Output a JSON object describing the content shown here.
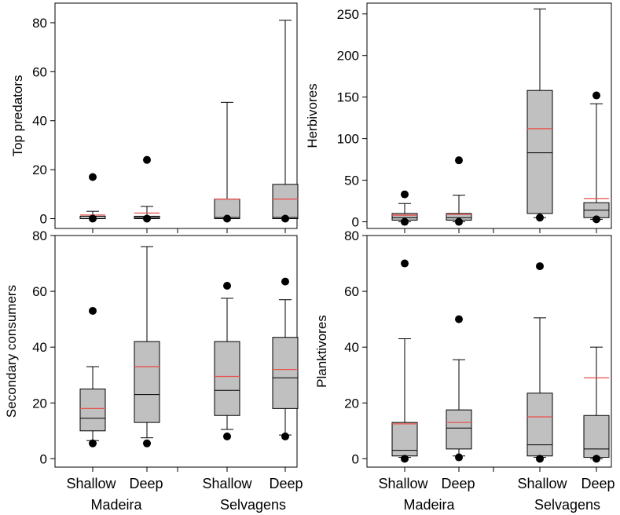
{
  "chart_data": [
    {
      "type": "box",
      "ylabel": "Top predators",
      "ylim": [
        -4,
        88
      ],
      "yticks": [
        0,
        20,
        40,
        60,
        80
      ],
      "boxes": [
        {
          "group": "Madeira",
          "depth": "Shallow",
          "whisker_low": 0,
          "q1": 0,
          "median": 0,
          "q3": 1,
          "whisker_high": 3,
          "mean": 1.5,
          "outliers": [
            0,
            17
          ]
        },
        {
          "group": "Madeira",
          "depth": "Deep",
          "whisker_low": 0,
          "q1": 0,
          "median": 0.5,
          "q3": 1,
          "whisker_high": 5,
          "mean": 2.3,
          "outliers": [
            0,
            24
          ]
        },
        {
          "group": "Selvagens",
          "depth": "Shallow",
          "whisker_low": 0,
          "q1": 0,
          "median": 0.5,
          "q3": 8,
          "whisker_high": 47.5,
          "mean": 8,
          "outliers": [
            0
          ]
        },
        {
          "group": "Selvagens",
          "depth": "Deep",
          "whisker_low": 0,
          "q1": 0,
          "median": 0.5,
          "q3": 14,
          "whisker_high": 81,
          "mean": 8,
          "outliers": [
            0
          ]
        }
      ]
    },
    {
      "type": "box",
      "ylabel": "Herbivores",
      "ylim": [
        -8,
        263
      ],
      "yticks": [
        0,
        50,
        100,
        150,
        200,
        250
      ],
      "boxes": [
        {
          "group": "Madeira",
          "depth": "Shallow",
          "whisker_low": 0,
          "q1": 2,
          "median": 5,
          "q3": 10,
          "whisker_high": 22,
          "mean": 8,
          "outliers": [
            0,
            33
          ]
        },
        {
          "group": "Madeira",
          "depth": "Deep",
          "whisker_low": 0,
          "q1": 2,
          "median": 5,
          "q3": 10,
          "whisker_high": 32,
          "mean": 9,
          "outliers": [
            0,
            74
          ]
        },
        {
          "group": "Selvagens",
          "depth": "Shallow",
          "whisker_low": 5,
          "q1": 10,
          "median": 83,
          "q3": 158,
          "whisker_high": 256,
          "mean": 112,
          "outliers": [
            5
          ]
        },
        {
          "group": "Selvagens",
          "depth": "Deep",
          "whisker_low": 3,
          "q1": 5,
          "median": 14,
          "q3": 23,
          "whisker_high": 142,
          "mean": 28,
          "outliers": [
            3,
            152
          ]
        }
      ]
    },
    {
      "type": "box",
      "ylabel": "Secondary consumers",
      "ylim": [
        -3,
        80
      ],
      "yticks": [
        0,
        20,
        40,
        60,
        80
      ],
      "boxes": [
        {
          "group": "Madeira",
          "depth": "Shallow",
          "whisker_low": 6.5,
          "q1": 10,
          "median": 14.5,
          "q3": 25,
          "whisker_high": 33,
          "mean": 18,
          "outliers": [
            5.5,
            53
          ]
        },
        {
          "group": "Madeira",
          "depth": "Deep",
          "whisker_low": 7.5,
          "q1": 13,
          "median": 23,
          "q3": 42,
          "whisker_high": 76,
          "mean": 33,
          "outliers": [
            5.5
          ]
        },
        {
          "group": "Selvagens",
          "depth": "Shallow",
          "whisker_low": 10.5,
          "q1": 15.5,
          "median": 24.5,
          "q3": 42,
          "whisker_high": 57.5,
          "mean": 29.5,
          "outliers": [
            8,
            62
          ]
        },
        {
          "group": "Selvagens",
          "depth": "Deep",
          "whisker_low": 8.5,
          "q1": 18,
          "median": 29,
          "q3": 43.5,
          "whisker_high": 57,
          "mean": 32,
          "outliers": [
            8,
            63.5
          ]
        }
      ]
    },
    {
      "type": "box",
      "ylabel": "Planktivores",
      "ylim": [
        -3,
        80
      ],
      "yticks": [
        0,
        20,
        40,
        60,
        80
      ],
      "boxes": [
        {
          "group": "Madeira",
          "depth": "Shallow",
          "whisker_low": 0.5,
          "q1": 1,
          "median": 3,
          "q3": 13,
          "whisker_high": 43,
          "mean": 12.5,
          "outliers": [
            0,
            70
          ]
        },
        {
          "group": "Madeira",
          "depth": "Deep",
          "whisker_low": 1,
          "q1": 3.5,
          "median": 11,
          "q3": 17.5,
          "whisker_high": 35.5,
          "mean": 13,
          "outliers": [
            0.5,
            50
          ]
        },
        {
          "group": "Selvagens",
          "depth": "Shallow",
          "whisker_low": 0.5,
          "q1": 1,
          "median": 5,
          "q3": 23.5,
          "whisker_high": 50.5,
          "mean": 15,
          "outliers": [
            0,
            69
          ]
        },
        {
          "group": "Selvagens",
          "depth": "Deep",
          "whisker_low": 0,
          "q1": 0.5,
          "median": 3.5,
          "q3": 15.5,
          "whisker_high": 40,
          "mean": 29,
          "outliers": [
            0
          ]
        }
      ]
    }
  ],
  "x_axis": {
    "depth_labels": [
      "Shallow",
      "Deep",
      "Shallow",
      "Deep"
    ],
    "group_labels": [
      "Madeira",
      "Selvagens"
    ]
  },
  "colors": {
    "box_fill": "#c0c0c0",
    "mean_line": "#e8514a",
    "outline": "#000000"
  }
}
